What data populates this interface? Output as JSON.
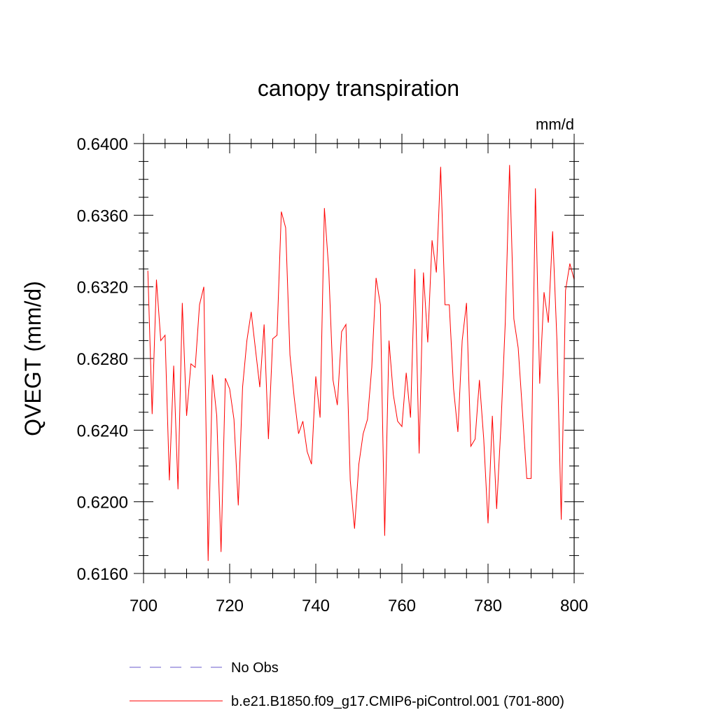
{
  "chart_data": {
    "type": "line",
    "title": "canopy transpiration",
    "units_label": "mm/d",
    "ylabel": "QVEGT  (mm/d)",
    "xlabel": "",
    "xlim": [
      700,
      800
    ],
    "ylim": [
      0.616,
      0.64
    ],
    "x_major_ticks": [
      700,
      720,
      740,
      760,
      780,
      800
    ],
    "x_tick_labels": [
      "700",
      "720",
      "740",
      "760",
      "780",
      "800"
    ],
    "y_major_ticks": [
      0.616,
      0.62,
      0.624,
      0.628,
      0.632,
      0.636,
      0.64
    ],
    "y_tick_labels": [
      "0.6160",
      "0.6200",
      "0.6240",
      "0.6280",
      "0.6320",
      "0.6360",
      "0.6400"
    ],
    "grid": false,
    "legend_position": "bottom",
    "series": [
      {
        "name": "No Obs",
        "color": "#6a5acd",
        "dash": "dashed",
        "x": [],
        "values": []
      },
      {
        "name": "b.e21.B1850.f09_g17.CMIP6-piControl.001 (701-800)",
        "color": "#ff0000",
        "dash": "solid",
        "x": [
          701,
          702,
          703,
          704,
          705,
          706,
          707,
          708,
          709,
          710,
          711,
          712,
          713,
          714,
          715,
          716,
          717,
          718,
          719,
          720,
          721,
          722,
          723,
          724,
          725,
          726,
          727,
          728,
          729,
          730,
          731,
          732,
          733,
          734,
          735,
          736,
          737,
          738,
          739,
          740,
          741,
          742,
          743,
          744,
          745,
          746,
          747,
          748,
          749,
          750,
          751,
          752,
          753,
          754,
          755,
          756,
          757,
          758,
          759,
          760,
          761,
          762,
          763,
          764,
          765,
          766,
          767,
          768,
          769,
          770,
          771,
          772,
          773,
          774,
          775,
          776,
          777,
          778,
          779,
          780,
          781,
          782,
          783,
          784,
          785,
          786,
          787,
          788,
          789,
          790,
          791,
          792,
          793,
          794,
          795,
          796,
          797,
          798,
          799,
          800
        ],
        "values": [
          0.6329,
          0.6249,
          0.6324,
          0.629,
          0.6293,
          0.6212,
          0.6276,
          0.6207,
          0.6311,
          0.6248,
          0.6277,
          0.6275,
          0.631,
          0.632,
          0.6167,
          0.6271,
          0.6248,
          0.6172,
          0.6269,
          0.6263,
          0.6246,
          0.6198,
          0.6264,
          0.629,
          0.6306,
          0.6285,
          0.6264,
          0.6299,
          0.6235,
          0.6291,
          0.6293,
          0.6362,
          0.6353,
          0.6282,
          0.6258,
          0.6238,
          0.6245,
          0.6228,
          0.6221,
          0.627,
          0.6247,
          0.6364,
          0.633,
          0.6268,
          0.6254,
          0.6295,
          0.6299,
          0.6212,
          0.6185,
          0.6221,
          0.6238,
          0.6246,
          0.6275,
          0.6325,
          0.631,
          0.6181,
          0.629,
          0.626,
          0.6245,
          0.6242,
          0.6272,
          0.6247,
          0.633,
          0.6227,
          0.6328,
          0.6289,
          0.6346,
          0.6328,
          0.6387,
          0.631,
          0.631,
          0.6263,
          0.6239,
          0.629,
          0.6311,
          0.6231,
          0.6235,
          0.6268,
          0.6235,
          0.6188,
          0.6248,
          0.6196,
          0.6243,
          0.63,
          0.6388,
          0.6302,
          0.6286,
          0.625,
          0.6213,
          0.6213,
          0.6375,
          0.6266,
          0.6317,
          0.63,
          0.6351,
          0.629,
          0.619,
          0.6318,
          0.6333,
          0.6324
        ]
      }
    ]
  }
}
